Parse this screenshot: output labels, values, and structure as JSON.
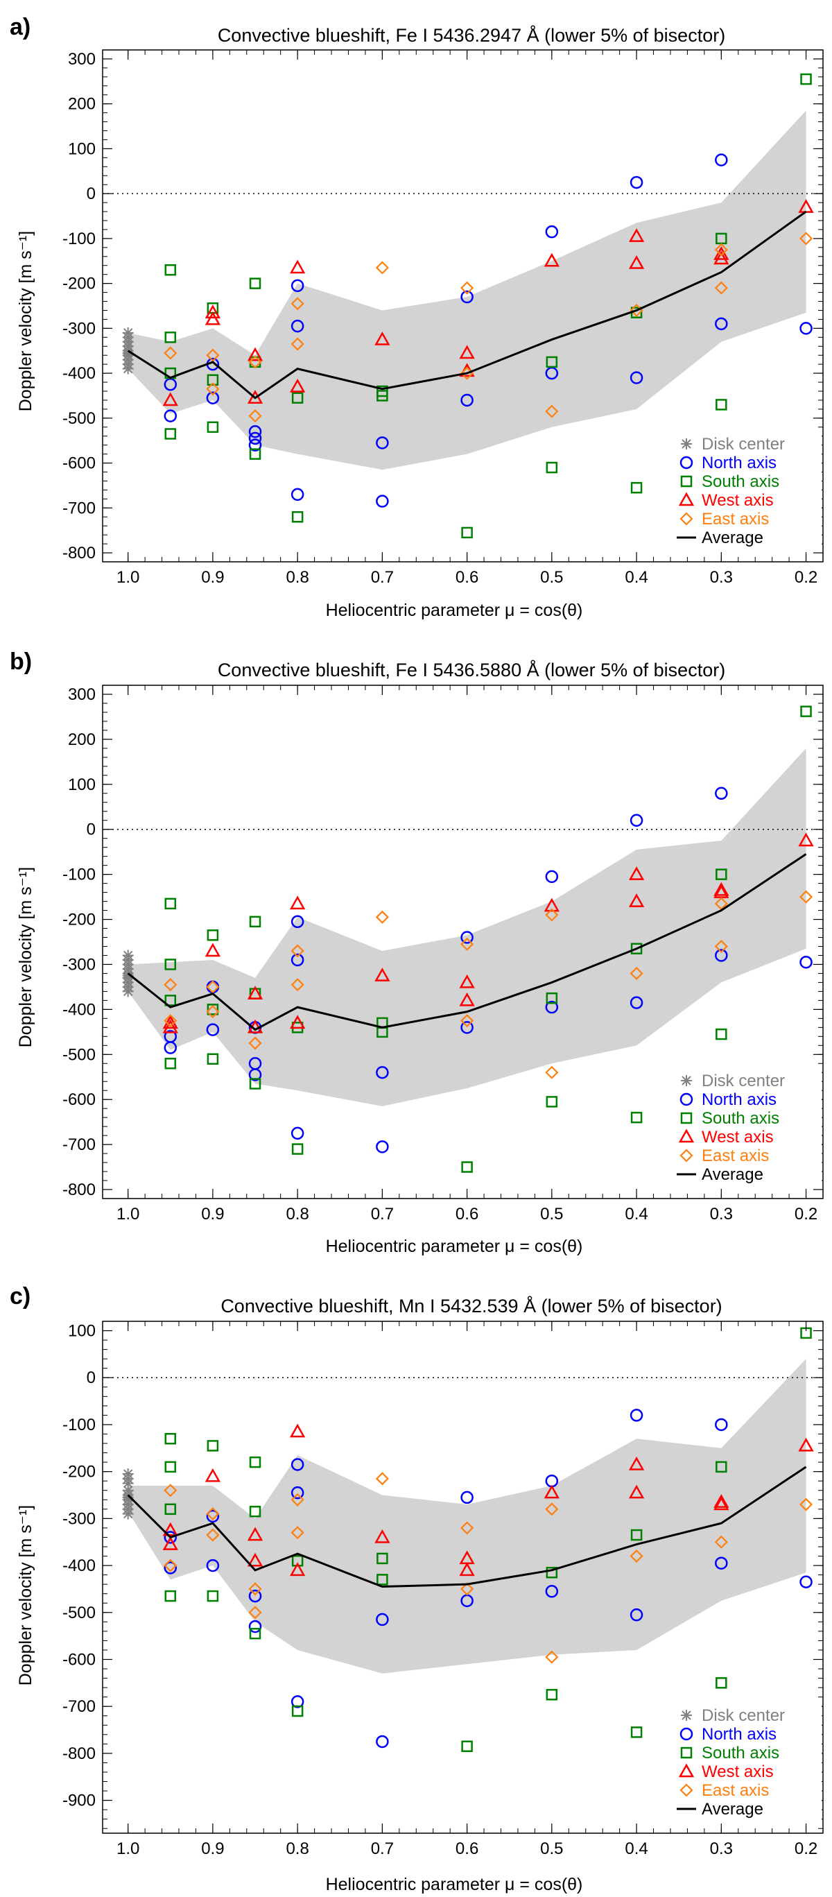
{
  "colors": {
    "disk_center": "#808080",
    "north": "#0000ff",
    "south": "#008000",
    "west": "#ff0000",
    "east": "#ff7f0e",
    "average": "#000000",
    "band": "#d3d3d3"
  },
  "chart_data": [
    {
      "type": "scatter",
      "panel_label": "a)",
      "title": "Convective blueshift, Fe I 5436.2947 Å (lower 5% of bisector)",
      "xlabel": "Heliocentric parameter μ = cos(θ)",
      "ylabel": "Doppler velocity [m s⁻¹]",
      "xlim": [
        1.03,
        0.18
      ],
      "ylim": [
        -820,
        320
      ],
      "xticks": [
        "1.0",
        "0.9",
        "0.8",
        "0.7",
        "0.6",
        "0.5",
        "0.4",
        "0.3",
        "0.2"
      ],
      "yticks": [
        "300",
        "200",
        "100",
        "0",
        "-100",
        "-200",
        "-300",
        "-400",
        "-500",
        "-600",
        "-700",
        "-800"
      ],
      "legend": [
        "Disk center",
        "North axis",
        "South axis",
        "West axis",
        "East axis",
        "Average"
      ],
      "legend_position": "bottom-right",
      "zero_line": "dotted",
      "series": [
        {
          "name": "Disk center",
          "marker": "asterisk",
          "x": [
            1.0,
            1.0,
            1.0,
            1.0,
            1.0,
            1.0,
            1.0,
            1.0,
            1.0,
            1.0
          ],
          "y": [
            -310,
            -320,
            -330,
            -340,
            -350,
            -355,
            -360,
            -370,
            -380,
            -390
          ]
        },
        {
          "name": "North axis",
          "marker": "circle",
          "x": [
            0.95,
            0.95,
            0.9,
            0.9,
            0.85,
            0.85,
            0.85,
            0.8,
            0.8,
            0.8,
            0.7,
            0.7,
            0.6,
            0.6,
            0.5,
            0.5,
            0.4,
            0.4,
            0.3,
            0.3,
            0.2
          ],
          "y": [
            -425,
            -495,
            -380,
            -455,
            -530,
            -545,
            -560,
            -205,
            -295,
            -670,
            -555,
            -685,
            -230,
            -460,
            -85,
            -400,
            25,
            -410,
            75,
            -290,
            -300
          ]
        },
        {
          "name": "South axis",
          "marker": "square",
          "x": [
            0.95,
            0.95,
            0.95,
            0.95,
            0.9,
            0.9,
            0.9,
            0.85,
            0.85,
            0.85,
            0.8,
            0.8,
            0.7,
            0.7,
            0.6,
            0.5,
            0.5,
            0.4,
            0.4,
            0.3,
            0.3,
            0.2
          ],
          "y": [
            -170,
            -320,
            -400,
            -535,
            -255,
            -415,
            -520,
            -200,
            -375,
            -580,
            -455,
            -720,
            -440,
            -450,
            -755,
            -375,
            -610,
            -265,
            -655,
            -100,
            -470,
            255
          ]
        },
        {
          "name": "West axis",
          "marker": "triangle",
          "x": [
            0.95,
            0.9,
            0.9,
            0.85,
            0.85,
            0.8,
            0.8,
            0.7,
            0.6,
            0.6,
            0.5,
            0.4,
            0.4,
            0.3,
            0.3,
            0.2
          ],
          "y": [
            -460,
            -265,
            -280,
            -360,
            -455,
            -165,
            -430,
            -325,
            -355,
            -395,
            -150,
            -95,
            -155,
            -135,
            -145,
            -30
          ]
        },
        {
          "name": "East axis",
          "marker": "diamond",
          "x": [
            0.95,
            0.9,
            0.9,
            0.85,
            0.85,
            0.8,
            0.8,
            0.7,
            0.6,
            0.6,
            0.5,
            0.4,
            0.3,
            0.3,
            0.2
          ],
          "y": [
            -355,
            -360,
            -435,
            -375,
            -495,
            -245,
            -335,
            -165,
            -210,
            -400,
            -485,
            -260,
            -125,
            -210,
            -100
          ]
        },
        {
          "name": "Average",
          "marker": "line",
          "x": [
            1.0,
            0.95,
            0.9,
            0.85,
            0.8,
            0.7,
            0.6,
            0.5,
            0.4,
            0.3,
            0.2
          ],
          "y": [
            -350,
            -410,
            -375,
            -455,
            -390,
            -435,
            -400,
            -325,
            -260,
            -175,
            -40
          ]
        }
      ],
      "band": {
        "x": [
          1.0,
          0.95,
          0.9,
          0.85,
          0.8,
          0.7,
          0.6,
          0.5,
          0.4,
          0.3,
          0.2
        ],
        "upper": [
          -310,
          -330,
          -300,
          -360,
          -200,
          -260,
          -230,
          -150,
          -65,
          -20,
          185
        ],
        "lower": [
          -390,
          -490,
          -460,
          -560,
          -580,
          -615,
          -580,
          -520,
          -480,
          -330,
          -265
        ]
      }
    },
    {
      "type": "scatter",
      "panel_label": "b)",
      "title": "Convective blueshift, Fe I 5436.5880 Å (lower 5% of bisector)",
      "xlabel": "Heliocentric parameter μ = cos(θ)",
      "ylabel": "Doppler velocity [m s⁻¹]",
      "xlim": [
        1.03,
        0.18
      ],
      "ylim": [
        -820,
        320
      ],
      "xticks": [
        "1.0",
        "0.9",
        "0.8",
        "0.7",
        "0.6",
        "0.5",
        "0.4",
        "0.3",
        "0.2"
      ],
      "yticks": [
        "300",
        "200",
        "100",
        "0",
        "-100",
        "-200",
        "-300",
        "-400",
        "-500",
        "-600",
        "-700",
        "-800"
      ],
      "legend": [
        "Disk center",
        "North axis",
        "South axis",
        "West axis",
        "East axis",
        "Average"
      ],
      "legend_position": "bottom-right",
      "zero_line": "dotted",
      "series": [
        {
          "name": "Disk center",
          "marker": "asterisk",
          "x": [
            1.0,
            1.0,
            1.0,
            1.0,
            1.0,
            1.0,
            1.0,
            1.0,
            1.0,
            1.0
          ],
          "y": [
            -280,
            -290,
            -300,
            -310,
            -320,
            -325,
            -330,
            -340,
            -350,
            -360
          ]
        },
        {
          "name": "North axis",
          "marker": "circle",
          "x": [
            0.95,
            0.95,
            0.9,
            0.9,
            0.85,
            0.85,
            0.85,
            0.8,
            0.8,
            0.8,
            0.7,
            0.7,
            0.6,
            0.6,
            0.5,
            0.5,
            0.4,
            0.4,
            0.3,
            0.3,
            0.2
          ],
          "y": [
            -460,
            -485,
            -350,
            -445,
            -520,
            -545,
            -440,
            -205,
            -290,
            -675,
            -540,
            -705,
            -240,
            -440,
            -105,
            -395,
            20,
            -385,
            80,
            -280,
            -295
          ]
        },
        {
          "name": "South axis",
          "marker": "square",
          "x": [
            0.95,
            0.95,
            0.95,
            0.95,
            0.9,
            0.9,
            0.9,
            0.85,
            0.85,
            0.85,
            0.8,
            0.8,
            0.7,
            0.7,
            0.6,
            0.5,
            0.5,
            0.4,
            0.4,
            0.3,
            0.3,
            0.2
          ],
          "y": [
            -165,
            -300,
            -380,
            -520,
            -235,
            -400,
            -510,
            -205,
            -365,
            -565,
            -440,
            -710,
            -430,
            -450,
            -750,
            -375,
            -605,
            -265,
            -640,
            -100,
            -455,
            262
          ]
        },
        {
          "name": "West axis",
          "marker": "triangle",
          "x": [
            0.95,
            0.95,
            0.9,
            0.85,
            0.85,
            0.8,
            0.8,
            0.7,
            0.6,
            0.6,
            0.5,
            0.4,
            0.4,
            0.3,
            0.3,
            0.2
          ],
          "y": [
            -430,
            -440,
            -270,
            -365,
            -440,
            -165,
            -430,
            -325,
            -340,
            -380,
            -170,
            -100,
            -160,
            -135,
            -140,
            -25
          ]
        },
        {
          "name": "East axis",
          "marker": "diamond",
          "x": [
            0.95,
            0.95,
            0.9,
            0.9,
            0.85,
            0.8,
            0.8,
            0.7,
            0.6,
            0.6,
            0.5,
            0.5,
            0.4,
            0.3,
            0.3,
            0.2
          ],
          "y": [
            -345,
            -425,
            -350,
            -405,
            -475,
            -270,
            -345,
            -195,
            -255,
            -425,
            -190,
            -540,
            -320,
            -165,
            -260,
            -150
          ]
        },
        {
          "name": "Average",
          "marker": "line",
          "x": [
            1.0,
            0.95,
            0.9,
            0.85,
            0.8,
            0.7,
            0.6,
            0.5,
            0.4,
            0.3,
            0.2
          ],
          "y": [
            -320,
            -395,
            -365,
            -445,
            -395,
            -440,
            -405,
            -340,
            -265,
            -180,
            -55
          ]
        }
      ],
      "band": {
        "x": [
          1.0,
          0.95,
          0.9,
          0.85,
          0.8,
          0.7,
          0.6,
          0.5,
          0.4,
          0.3,
          0.2
        ],
        "upper": [
          -300,
          -295,
          -290,
          -330,
          -195,
          -270,
          -235,
          -160,
          -45,
          -25,
          180
        ],
        "lower": [
          -360,
          -490,
          -450,
          -565,
          -580,
          -615,
          -575,
          -520,
          -480,
          -340,
          -265
        ]
      }
    },
    {
      "type": "scatter",
      "panel_label": "c)",
      "title": "Convective blueshift, Mn I 5432.539 Å (lower 5% of bisector)",
      "xlabel": "Heliocentric parameter μ = cos(θ)",
      "ylabel": "Doppler velocity [m s⁻¹]",
      "xlim": [
        1.03,
        0.18
      ],
      "ylim": [
        -970,
        120
      ],
      "xticks": [
        "1.0",
        "0.9",
        "0.8",
        "0.7",
        "0.6",
        "0.5",
        "0.4",
        "0.3",
        "0.2"
      ],
      "yticks": [
        "100",
        "0",
        "-100",
        "-200",
        "-300",
        "-400",
        "-500",
        "-600",
        "-700",
        "-800",
        "-900"
      ],
      "legend": [
        "Disk center",
        "North axis",
        "South axis",
        "West axis",
        "East axis",
        "Average"
      ],
      "legend_position": "bottom-right",
      "zero_line": "dotted",
      "series": [
        {
          "name": "Disk center",
          "marker": "asterisk",
          "x": [
            1.0,
            1.0,
            1.0,
            1.0,
            1.0,
            1.0,
            1.0,
            1.0,
            1.0,
            1.0
          ],
          "y": [
            -205,
            -215,
            -225,
            -240,
            -250,
            -255,
            -260,
            -270,
            -280,
            -290
          ]
        },
        {
          "name": "North axis",
          "marker": "circle",
          "x": [
            0.95,
            0.95,
            0.9,
            0.9,
            0.85,
            0.85,
            0.8,
            0.8,
            0.8,
            0.7,
            0.7,
            0.6,
            0.6,
            0.5,
            0.5,
            0.4,
            0.4,
            0.3,
            0.3,
            0.2
          ],
          "y": [
            -340,
            -405,
            -295,
            -400,
            -465,
            -530,
            -185,
            -245,
            -690,
            -515,
            -775,
            -255,
            -475,
            -220,
            -455,
            -80,
            -505,
            -100,
            -395,
            -435
          ]
        },
        {
          "name": "South axis",
          "marker": "square",
          "x": [
            0.95,
            0.95,
            0.95,
            0.95,
            0.9,
            0.9,
            0.85,
            0.85,
            0.85,
            0.8,
            0.8,
            0.7,
            0.7,
            0.6,
            0.5,
            0.5,
            0.4,
            0.4,
            0.3,
            0.3,
            0.2
          ],
          "y": [
            -130,
            -190,
            -280,
            -465,
            -145,
            -465,
            -180,
            -285,
            -545,
            -390,
            -710,
            -385,
            -430,
            -785,
            -415,
            -675,
            -335,
            -755,
            -190,
            -650,
            95
          ]
        },
        {
          "name": "West axis",
          "marker": "triangle",
          "x": [
            0.95,
            0.95,
            0.9,
            0.85,
            0.85,
            0.8,
            0.8,
            0.7,
            0.6,
            0.6,
            0.5,
            0.4,
            0.4,
            0.3,
            0.3,
            0.2
          ],
          "y": [
            -325,
            -355,
            -210,
            -335,
            -390,
            -115,
            -410,
            -340,
            -385,
            -410,
            -245,
            -185,
            -245,
            -265,
            -270,
            -145
          ]
        },
        {
          "name": "East axis",
          "marker": "diamond",
          "x": [
            0.95,
            0.95,
            0.9,
            0.9,
            0.85,
            0.85,
            0.8,
            0.8,
            0.7,
            0.6,
            0.6,
            0.5,
            0.5,
            0.4,
            0.3,
            0.2
          ],
          "y": [
            -240,
            -400,
            -290,
            -335,
            -450,
            -500,
            -260,
            -330,
            -215,
            -320,
            -450,
            -280,
            -595,
            -380,
            -350,
            -270
          ]
        },
        {
          "name": "Average",
          "marker": "line",
          "x": [
            1.0,
            0.95,
            0.9,
            0.85,
            0.8,
            0.7,
            0.6,
            0.5,
            0.4,
            0.3,
            0.2
          ],
          "y": [
            -250,
            -340,
            -310,
            -410,
            -375,
            -445,
            -440,
            -410,
            -355,
            -310,
            -190
          ]
        }
      ],
      "band": {
        "x": [
          1.0,
          0.95,
          0.9,
          0.85,
          0.8,
          0.7,
          0.6,
          0.5,
          0.4,
          0.3,
          0.2
        ],
        "upper": [
          -230,
          -230,
          -230,
          -300,
          -165,
          -250,
          -270,
          -230,
          -130,
          -150,
          40
        ],
        "lower": [
          -285,
          -430,
          -400,
          -520,
          -580,
          -630,
          -610,
          -590,
          -580,
          -475,
          -415
        ]
      }
    }
  ]
}
